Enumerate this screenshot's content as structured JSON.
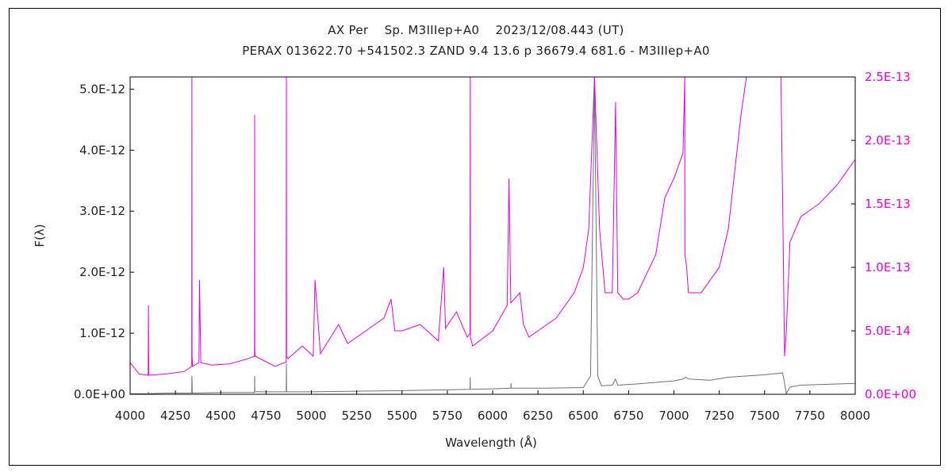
{
  "chart_data": {
    "type": "line",
    "title": "AX Per    Sp. M3IIIep+A0    2023/12/08.443 (UT)",
    "subtitle": "PERAX 013622.70 +541502.3 ZAND 9.4 13.6 p 36679.4 681.6 - M3IIIep+A0",
    "xlabel": "Wavelength (Å)",
    "ylabel": "F(λ)",
    "xlim": [
      4000,
      8000
    ],
    "ylim_left": [
      0,
      5.2e-12
    ],
    "ylim_right": [
      0,
      2.5e-13
    ],
    "x_ticks": [
      "4000",
      "4250",
      "4500",
      "4750",
      "5000",
      "5250",
      "5500",
      "5750",
      "6000",
      "6250",
      "6500",
      "6750",
      "7000",
      "7250",
      "7500",
      "7750",
      "8000"
    ],
    "y_ticks_left": [
      "0.0E+00",
      "1.0E-12",
      "2.0E-12",
      "3.0E-12",
      "4.0E-12",
      "5.0E-12"
    ],
    "y_ticks_right": [
      "0.0E+00",
      "5.0E-14",
      "1.0E-13",
      "1.5E-13",
      "2.0E-13",
      "2.5E-13"
    ],
    "colors": {
      "left_series": "#707070",
      "right_series": "#e000e0",
      "axis": "#000000"
    },
    "series": [
      {
        "axis": "left",
        "x": [
          4000,
          4100,
          4101,
          4102,
          4200,
          4340,
          4341,
          4342,
          4343,
          4500,
          4686,
          4687,
          4688,
          4800,
          4861,
          4862,
          4863,
          5000,
          5200,
          5500,
          5875,
          5876,
          5877,
          6000,
          6100,
          6101,
          6102,
          6300,
          6500,
          6540,
          6562,
          6580,
          6600,
          6660,
          6678,
          6690,
          6800,
          7000,
          7050,
          7065,
          7080,
          7200,
          7300,
          7500,
          7600,
          7620,
          7640,
          7700,
          7800,
          8000
        ],
        "values": [
          1e-14,
          1e-14,
          4e-14,
          1e-14,
          2e-14,
          2e-14,
          3e-13,
          2e-13,
          2e-14,
          3e-14,
          3e-14,
          3e-13,
          4e-14,
          4e-14,
          4e-14,
          5e-13,
          4e-14,
          4e-14,
          5e-14,
          6e-14,
          8e-14,
          2.8e-13,
          8e-14,
          9e-14,
          1e-13,
          1.8e-13,
          1e-13,
          1e-13,
          1.1e-13,
          3e-13,
          5.1e-12,
          3e-13,
          1.4e-13,
          1.5e-13,
          2.5e-13,
          1.5e-13,
          1.7e-13,
          2.2e-13,
          2.5e-13,
          2.8e-13,
          2.5e-13,
          2.3e-13,
          2.8e-13,
          3.2e-13,
          3.5e-13,
          1e-14,
          1.2e-13,
          1.5e-13,
          1.6e-13,
          1.8e-13
        ]
      },
      {
        "axis": "right",
        "x": [
          4000,
          4050,
          4100,
          4101,
          4103,
          4200,
          4300,
          4340,
          4341,
          4342,
          4345,
          4380,
          4383,
          4390,
          4450,
          4550,
          4650,
          4686,
          4687,
          4688,
          4690,
          4800,
          4850,
          4861,
          4862,
          4863,
          4870,
          4950,
          5010,
          5020,
          5050,
          5150,
          5200,
          5300,
          5400,
          5440,
          5460,
          5500,
          5600,
          5700,
          5730,
          5740,
          5800,
          5860,
          5875,
          5876,
          5877,
          5890,
          6000,
          6080,
          6090,
          6100,
          6150,
          6170,
          6200,
          6250,
          6350,
          6450,
          6500,
          6530,
          6562,
          6590,
          6620,
          6660,
          6678,
          6690,
          6720,
          6750,
          6800,
          6900,
          6950,
          7000,
          7050,
          7060,
          7061,
          7070,
          7080,
          7150,
          7250,
          7300,
          7370,
          7400,
          7500,
          7580,
          7590,
          7600,
          7610,
          7620,
          7640,
          7700,
          7800,
          7900,
          8000
        ],
        "values": [
          2.5e-14,
          1.6e-14,
          1.5e-14,
          7e-14,
          1.5e-14,
          1.6e-14,
          1.8e-14,
          2.2e-14,
          2.5e-13,
          3e-14,
          2.2e-14,
          2.5e-14,
          9e-14,
          2.5e-14,
          2.3e-14,
          2.4e-14,
          2.8e-14,
          3e-14,
          2.2e-13,
          3.5e-14,
          3e-14,
          2.2e-14,
          2.5e-14,
          2.5e-14,
          2.5e-13,
          3e-14,
          2.8e-14,
          3.8e-14,
          3e-14,
          9e-14,
          3.2e-14,
          5.5e-14,
          4e-14,
          5e-14,
          6e-14,
          7.5e-14,
          5e-14,
          5e-14,
          5.5e-14,
          4.2e-14,
          1e-13,
          5.2e-14,
          6.5e-14,
          4.5e-14,
          4.8e-14,
          2.5e-13,
          4.5e-14,
          3.8e-14,
          5e-14,
          7e-14,
          1.7e-13,
          7.2e-14,
          8e-14,
          5.5e-14,
          4.5e-14,
          5e-14,
          6e-14,
          8e-14,
          1e-13,
          1.3e-13,
          2.5e-13,
          1.3e-13,
          8e-14,
          8e-14,
          2.3e-13,
          8e-14,
          7.5e-14,
          7.5e-14,
          8e-14,
          1.1e-13,
          1.55e-13,
          1.7e-13,
          1.9e-13,
          2.5e-13,
          1.1e-13,
          1e-13,
          8e-14,
          8e-14,
          1e-13,
          1.3e-13,
          2.2e-13,
          2.5e-13,
          2.5e-13,
          2.5e-13,
          2.5e-13,
          1.5e-13,
          3e-14,
          5e-14,
          1.2e-13,
          1.4e-13,
          1.5e-13,
          1.65e-13,
          1.85e-13
        ]
      }
    ]
  }
}
